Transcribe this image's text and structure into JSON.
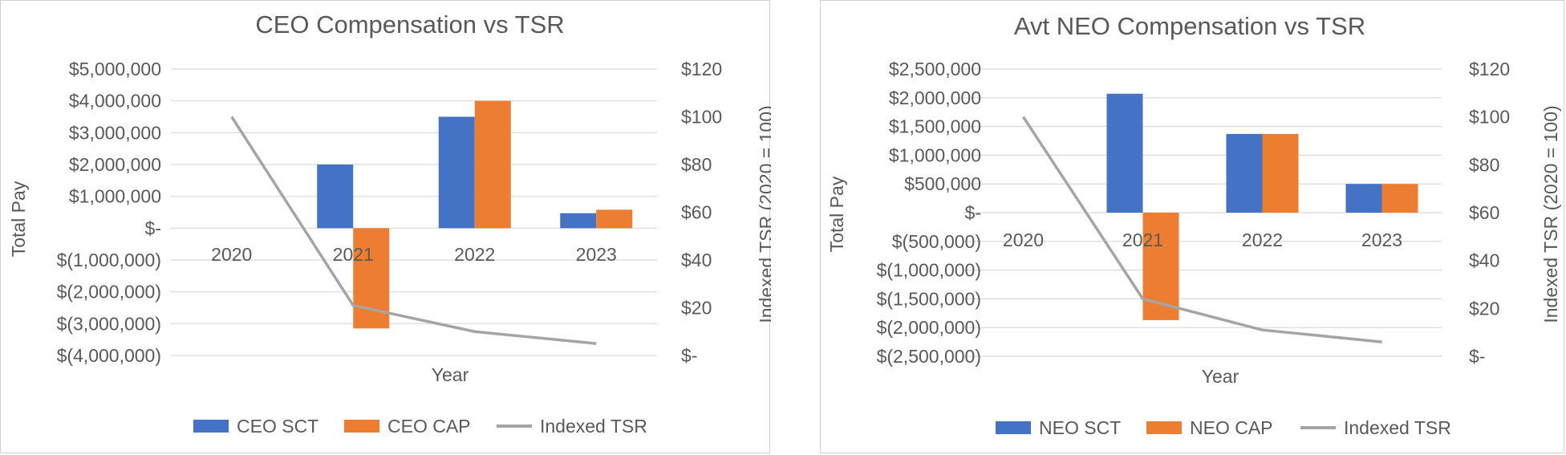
{
  "chart_data": [
    {
      "type": "bar",
      "title": "CEO Compensation vs TSR",
      "xlabel": "Year",
      "ylabel": "Total Pay",
      "y2label": "Indexed TSR (2020 = 100)",
      "categories": [
        "2020",
        "2021",
        "2022",
        "2023"
      ],
      "ylim": [
        -4000000,
        5000000
      ],
      "y2lim": [
        0,
        120
      ],
      "yticks": [
        5000000,
        4000000,
        3000000,
        2000000,
        1000000,
        0,
        -1000000,
        -2000000,
        -3000000,
        -4000000
      ],
      "yticklabels": [
        "$5,000,000",
        "$4,000,000",
        "$3,000,000",
        "$2,000,000",
        "$1,000,000",
        "$-",
        "$(1,000,000)",
        "$(2,000,000)",
        "$(3,000,000)",
        "$(4,000,000)"
      ],
      "y2ticks": [
        120,
        100,
        80,
        60,
        40,
        20,
        0
      ],
      "y2ticklabels": [
        "$120",
        "$100",
        "$80",
        "$60",
        "$40",
        "$20",
        "$-"
      ],
      "series": [
        {
          "name": "CEO SCT",
          "kind": "bar",
          "axis": "left",
          "color": "#4472c4",
          "values": [
            null,
            2000000,
            3500000,
            470000
          ]
        },
        {
          "name": "CEO CAP",
          "kind": "bar",
          "axis": "left",
          "color": "#ed7d31",
          "values": [
            null,
            -3150000,
            4000000,
            580000
          ]
        },
        {
          "name": "Indexed TSR",
          "kind": "line",
          "axis": "right",
          "color": "#a5a5a5",
          "values": [
            100,
            21,
            10,
            5
          ]
        }
      ],
      "legend_position": "bottom",
      "grid": true
    },
    {
      "type": "bar",
      "title": "Avt NEO Compensation vs TSR",
      "xlabel": "Year",
      "ylabel": "Total Pay",
      "y2label": "Indexed TSR (2020 = 100)",
      "categories": [
        "2020",
        "2021",
        "2022",
        "2023"
      ],
      "ylim": [
        -2500000,
        2500000
      ],
      "y2lim": [
        0,
        120
      ],
      "yticks": [
        2500000,
        2000000,
        1500000,
        1000000,
        500000,
        0,
        -500000,
        -1000000,
        -1500000,
        -2000000,
        -2500000
      ],
      "yticklabels": [
        "$2,500,000",
        "$2,000,000",
        "$1,500,000",
        "$1,000,000",
        "$500,000",
        "$-",
        "$(500,000)",
        "$(1,000,000)",
        "$(1,500,000)",
        "$(2,000,000)",
        "$(2,500,000)"
      ],
      "y2ticks": [
        120,
        100,
        80,
        60,
        40,
        20,
        0
      ],
      "y2ticklabels": [
        "$120",
        "$100",
        "$80",
        "$60",
        "$40",
        "$20",
        "$-"
      ],
      "series": [
        {
          "name": "NEO SCT",
          "kind": "bar",
          "axis": "left",
          "color": "#4472c4",
          "values": [
            null,
            2070000,
            1370000,
            500000
          ]
        },
        {
          "name": "NEO CAP",
          "kind": "bar",
          "axis": "left",
          "color": "#ed7d31",
          "values": [
            null,
            -1870000,
            1370000,
            500000
          ]
        },
        {
          "name": "Indexed TSR",
          "kind": "line",
          "axis": "right",
          "color": "#a5a5a5",
          "values": [
            100,
            24,
            11,
            6
          ]
        }
      ],
      "legend_position": "bottom",
      "grid": true
    }
  ]
}
